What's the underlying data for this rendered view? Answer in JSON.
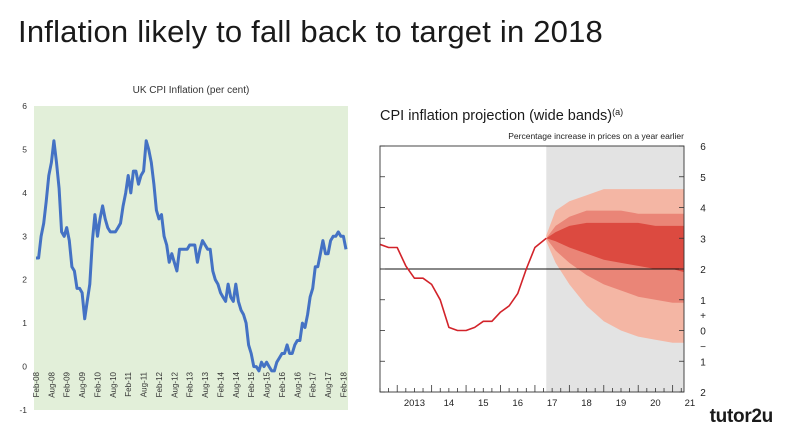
{
  "slide": {
    "title": "Inflation likely to fall back to target in 2018"
  },
  "logo": {
    "text": "tutor2u"
  },
  "colors": {
    "accent": "#d2232a",
    "line": "#4472c4",
    "plot_bg": "#e2efd9",
    "fan_outer": "#f4b6a4",
    "fan_mid": "#ea8577",
    "fan_inner": "#dc4a40"
  },
  "chart_data": [
    {
      "type": "line",
      "title": "UK CPI Inflation (per cent)",
      "xlabel": "",
      "ylabel": "",
      "ylim": [
        -1,
        6
      ],
      "yticks": [
        "6",
        "5",
        "4",
        "3",
        "2",
        "1",
        "0",
        "-1"
      ],
      "x_tick_labels": [
        "Feb-08",
        "Aug-08",
        "Feb-09",
        "Aug-09",
        "Feb-10",
        "Aug-10",
        "Feb-11",
        "Aug-11",
        "Feb-12",
        "Aug-12",
        "Feb-13",
        "Aug-13",
        "Feb-14",
        "Aug-14",
        "Feb-15",
        "Aug-15",
        "Feb-16",
        "Aug-16",
        "Feb-17",
        "Aug-17",
        "Feb-18"
      ],
      "grid": false,
      "series": [
        {
          "values": [
            2.5,
            2.5,
            3.0,
            3.3,
            3.8,
            4.4,
            4.7,
            5.2,
            4.7,
            4.1,
            3.1,
            3.0,
            3.2,
            2.9,
            2.3,
            2.2,
            1.8,
            1.8,
            1.7,
            1.1,
            1.5,
            1.9,
            2.9,
            3.5,
            3.0,
            3.4,
            3.7,
            3.4,
            3.2,
            3.1,
            3.1,
            3.1,
            3.2,
            3.3,
            3.7,
            4.0,
            4.4,
            4.0,
            4.5,
            4.5,
            4.2,
            4.4,
            4.5,
            5.2,
            5.0,
            4.7,
            4.2,
            3.6,
            3.4,
            3.5,
            3.0,
            2.8,
            2.4,
            2.6,
            2.4,
            2.2,
            2.7,
            2.7,
            2.7,
            2.7,
            2.8,
            2.8,
            2.8,
            2.4,
            2.7,
            2.9,
            2.8,
            2.7,
            2.7,
            2.2,
            2.0,
            1.9,
            1.7,
            1.6,
            1.5,
            1.9,
            1.6,
            1.5,
            1.9,
            1.5,
            1.3,
            1.2,
            1.0,
            0.5,
            0.3,
            0.0,
            0.0,
            -0.1,
            0.1,
            0.0,
            0.1,
            0.0,
            -0.1,
            -0.1,
            0.1,
            0.2,
            0.3,
            0.3,
            0.5,
            0.3,
            0.3,
            0.5,
            0.6,
            0.6,
            1.0,
            0.9,
            1.2,
            1.6,
            1.8,
            2.3,
            2.3,
            2.6,
            2.9,
            2.6,
            2.6,
            2.9,
            3.0,
            3.0,
            3.1,
            3.0,
            3.0,
            2.7
          ]
        }
      ]
    },
    {
      "type": "area",
      "title": "CPI inflation projection (wide bands)",
      "title_superscript": "(a)",
      "subtitle": "Percentage increase in prices on a year earlier",
      "xlabel": "",
      "ylabel": "",
      "ylim": [
        -2,
        6
      ],
      "right_axis_labels": [
        "6",
        "5",
        "4",
        "3",
        "2",
        "1",
        "+",
        "0",
        "−",
        "1",
        "2"
      ],
      "x_tick_labels": [
        "2013",
        "14",
        "15",
        "16",
        "17",
        "18",
        "19",
        "20",
        "21"
      ],
      "x_range": [
        2012.5,
        2021.33
      ],
      "target_line": 2,
      "projection_start": 2017.33,
      "grid": false,
      "history": {
        "x": [
          2012.5,
          2012.75,
          2013.0,
          2013.25,
          2013.5,
          2013.75,
          2014.0,
          2014.25,
          2014.5,
          2014.75,
          2015.0,
          2015.25,
          2015.5,
          2015.75,
          2016.0,
          2016.25,
          2016.5,
          2016.75,
          2017.0,
          2017.33
        ],
        "values": [
          2.8,
          2.7,
          2.7,
          2.1,
          1.7,
          1.7,
          1.5,
          1.0,
          0.1,
          0.0,
          0.0,
          0.1,
          0.3,
          0.3,
          0.6,
          0.8,
          1.2,
          2.0,
          2.7,
          3.0
        ]
      },
      "fan_bands": {
        "x": [
          2017.33,
          2017.6,
          2018.0,
          2018.5,
          2019.0,
          2019.5,
          2020.0,
          2020.5,
          2021.0,
          2021.33
        ],
        "outer_upper": [
          3.1,
          3.9,
          4.2,
          4.4,
          4.6,
          4.6,
          4.6,
          4.6,
          4.6,
          4.6
        ],
        "mid_upper": [
          3.0,
          3.4,
          3.7,
          3.9,
          3.9,
          3.9,
          3.8,
          3.8,
          3.8,
          3.8
        ],
        "inner_upper": [
          3.0,
          3.2,
          3.4,
          3.5,
          3.5,
          3.5,
          3.5,
          3.4,
          3.4,
          3.4
        ],
        "inner_lower": [
          3.0,
          2.9,
          2.7,
          2.5,
          2.3,
          2.2,
          2.1,
          2.0,
          2.0,
          1.9
        ],
        "mid_lower": [
          3.0,
          2.6,
          2.2,
          1.8,
          1.5,
          1.3,
          1.1,
          1.0,
          0.9,
          0.9
        ],
        "outer_lower": [
          2.9,
          2.2,
          1.5,
          0.8,
          0.3,
          0.0,
          -0.2,
          -0.3,
          -0.4,
          -0.4
        ]
      }
    }
  ]
}
